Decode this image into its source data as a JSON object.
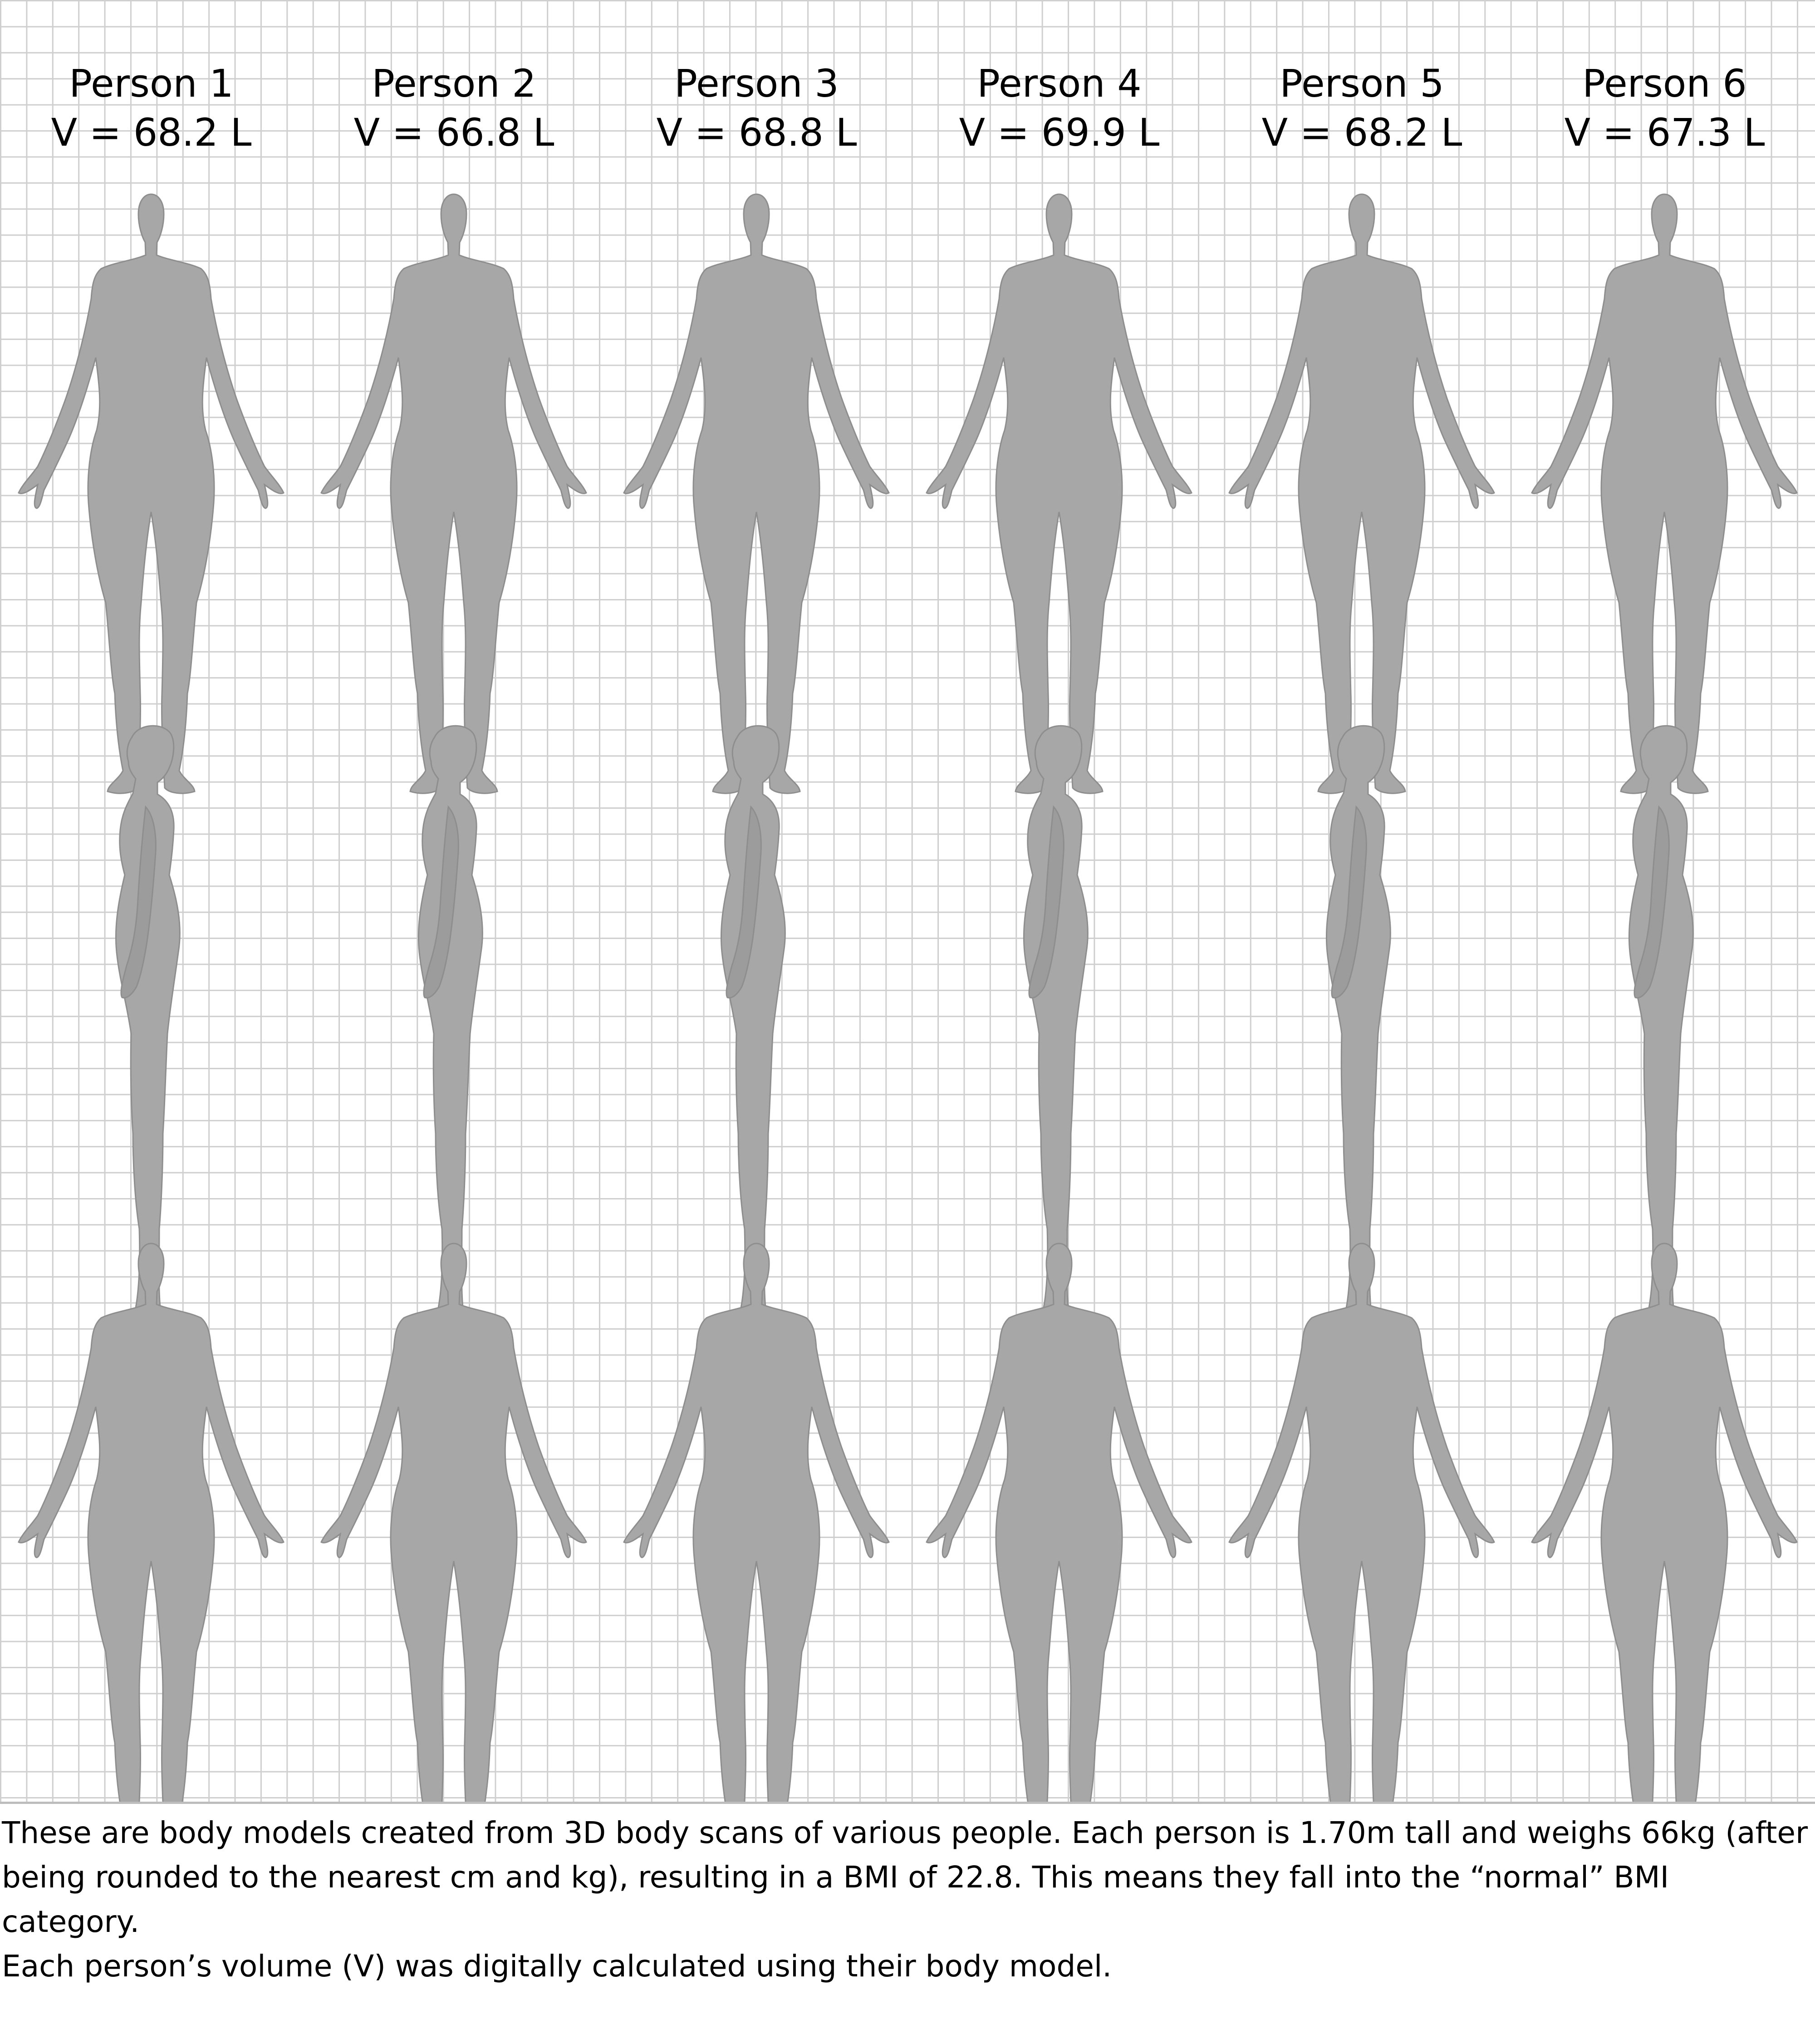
{
  "people": [
    {
      "name": "Person 1",
      "volume_label": "V = 68.2 L"
    },
    {
      "name": "Person 2",
      "volume_label": "V = 66.8 L"
    },
    {
      "name": "Person 3",
      "volume_label": "V = 68.8 L"
    },
    {
      "name": "Person 4",
      "volume_label": "V = 69.9 L"
    },
    {
      "name": "Person 5",
      "volume_label": "V = 68.2 L"
    },
    {
      "name": "Person 6",
      "volume_label": "V = 67.3 L"
    }
  ],
  "views": [
    "front",
    "side",
    "back"
  ],
  "colors": {
    "figure_fill": "#a7a7a7",
    "figure_stroke": "#8e8e8e",
    "grid_line": "#cfcfcf"
  },
  "caption": {
    "line1": "These are body models created from 3D body scans of various people. Each person is 1.70m tall and weighs 66kg (after",
    "line2": "being rounded to the nearest cm and kg), resulting in a BMI of 22.8. This means they fall into the “normal” BMI category.",
    "line3": "Each person’s volume (V) was digitally calculated using their body model."
  }
}
